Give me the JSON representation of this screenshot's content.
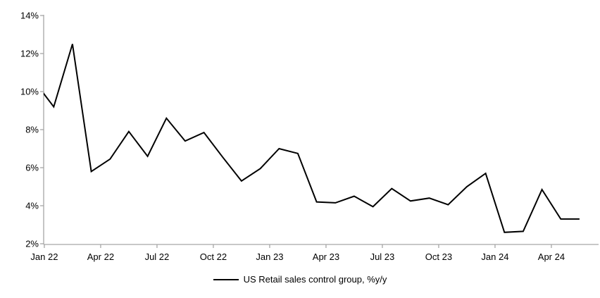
{
  "chart_data": {
    "type": "line",
    "title": "",
    "x": [
      "Dec 21",
      "Jan 22",
      "Feb 22",
      "Mar 22",
      "Apr 22",
      "May 22",
      "Jun 22",
      "Jul 22",
      "Aug 22",
      "Sep 22",
      "Oct 22",
      "Nov 22",
      "Dec 22",
      "Jan 23",
      "Feb 23",
      "Mar 23",
      "Apr 23",
      "May 23",
      "Jun 23",
      "Jul 23",
      "Aug 23",
      "Sep 23",
      "Oct 23",
      "Nov 23",
      "Dec 23",
      "Jan 24",
      "Feb 24",
      "Mar 24",
      "Apr 24",
      "May 24"
    ],
    "series": [
      {
        "name": "US Retail sales control group, %y/y",
        "color": "#000000",
        "values": [
          10.5,
          9.2,
          12.5,
          5.8,
          6.45,
          7.9,
          6.6,
          8.6,
          7.4,
          7.85,
          6.55,
          5.3,
          5.95,
          7.0,
          6.75,
          4.2,
          4.15,
          4.5,
          3.95,
          4.9,
          4.25,
          4.4,
          4.05,
          5.0,
          5.7,
          2.6,
          2.65,
          4.85,
          3.3,
          3.3
        ]
      }
    ],
    "ylim": [
      2,
      14
    ],
    "yticks": [
      2,
      4,
      6,
      8,
      10,
      12,
      14
    ],
    "ytick_labels": [
      "2%",
      "4%",
      "6%",
      "8%",
      "10%",
      "12%",
      "14%"
    ],
    "xtick_labels": [
      "Jan 22",
      "Apr 22",
      "Jul 22",
      "Oct 22",
      "Jan 23",
      "Apr 23",
      "Jul 23",
      "Oct 23",
      "Jan 24",
      "Apr 24"
    ],
    "xtick_month_indices": [
      1,
      4,
      7,
      10,
      13,
      16,
      19,
      22,
      25,
      28
    ],
    "grid": false,
    "axis_color": "#a6a6a6",
    "first_point_clipped_by_axis": true,
    "legend": {
      "position": "bottom",
      "entries": [
        "US Retail sales control group, %y/y"
      ]
    }
  }
}
